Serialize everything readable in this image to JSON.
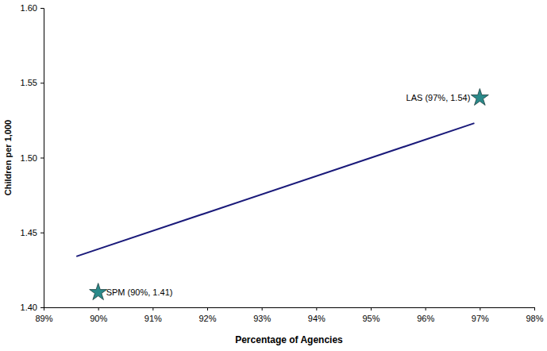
{
  "chart_data": {
    "type": "scatter",
    "x_label": "Percentage of Agencies",
    "y_label": "Children per 1,000",
    "xlim": [
      89,
      98
    ],
    "xticks": [
      {
        "value": 89,
        "label": "89%"
      },
      {
        "value": 90,
        "label": "90%"
      },
      {
        "value": 91,
        "label": "91%"
      },
      {
        "value": 92,
        "label": "92%"
      },
      {
        "value": 93,
        "label": "93%"
      },
      {
        "value": 94,
        "label": "94%"
      },
      {
        "value": 95,
        "label": "95%"
      },
      {
        "value": 96,
        "label": "96%"
      },
      {
        "value": 97,
        "label": "97%"
      },
      {
        "value": 98,
        "label": "98%"
      }
    ],
    "ylim": [
      1.4,
      1.6
    ],
    "yticks": [
      {
        "value": 1.4,
        "label": "1.40"
      },
      1.45,
      {
        "value": 1.5,
        "label": "1.50"
      },
      1.55,
      {
        "value": 1.6,
        "label": "1.60"
      }
    ],
    "grid": false,
    "data_labels": true,
    "series": [
      {
        "type": "line",
        "color": "#1a1a7a",
        "line_style": "solid",
        "x": [
          89.6,
          96.9
        ],
        "values": [
          1.434,
          1.523
        ]
      },
      {
        "type": "scatter",
        "color": "#2a8a8a",
        "marker": "star",
        "x": [
          97,
          90
        ],
        "values": [
          1.54,
          1.41
        ],
        "value_labels": [
          "LAS (97%, 1.54)",
          "SPM (90%, 1.41)"
        ]
      }
    ]
  }
}
